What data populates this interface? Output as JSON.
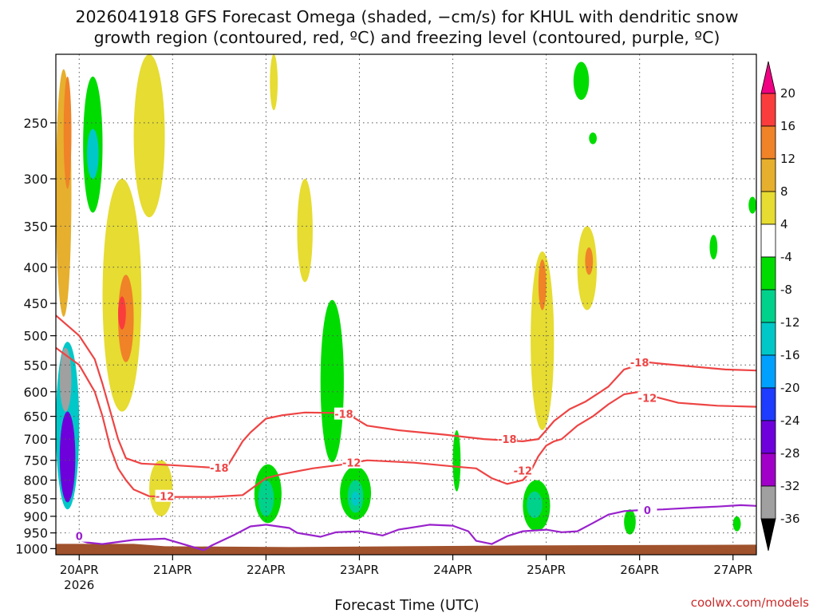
{
  "title": {
    "line1": "2026041918 GFS Forecast Omega (shaded, −cm/s) for KHUL with dendritic snow",
    "line2": "growth region (contoured, red, ºC) and freezing level (contoured, purple, ºC)"
  },
  "credit": "coolwx.com/models",
  "colors": {
    "dgz": "#ee4444",
    "freezing": "#9922cc",
    "ground": "#a0522d",
    "grid": "#555555"
  },
  "chart_data": {
    "type": "heatmap",
    "xlabel": "Forecast Time (UTC)",
    "x_ticks": [
      {
        "hour": 6,
        "label": "20APR",
        "sub": "2026"
      },
      {
        "hour": 30,
        "label": "21APR"
      },
      {
        "hour": 54,
        "label": "22APR"
      },
      {
        "hour": 78,
        "label": "23APR"
      },
      {
        "hour": 102,
        "label": "24APR"
      },
      {
        "hour": 126,
        "label": "25APR"
      },
      {
        "hour": 150,
        "label": "26APR"
      },
      {
        "hour": 174,
        "label": "27APR"
      }
    ],
    "xlim": [
      0,
      180
    ],
    "y_ticks": [
      250,
      300,
      350,
      400,
      450,
      500,
      550,
      600,
      650,
      700,
      750,
      800,
      850,
      900,
      950,
      1000
    ],
    "ylim": [
      1020,
      200
    ],
    "y_scale": "log-pressure",
    "grid": true,
    "colorbar": {
      "levels": [
        -36,
        -32,
        -28,
        -24,
        -20,
        -16,
        -12,
        -8,
        -4,
        4,
        8,
        12,
        16,
        20
      ],
      "colors": [
        "#000000",
        "#a0a0a0",
        "#a000c8",
        "#6e00dc",
        "#1e3cff",
        "#00a0ff",
        "#00c8c8",
        "#00d28c",
        "#00dc00",
        "#ffffff",
        "#e6dc32",
        "#e6af2d",
        "#f08228",
        "#fa3c3c",
        "#f00082"
      ]
    },
    "omega_regions": [
      {
        "h": [
          0,
          6
        ],
        "p": [
          510,
          880
        ],
        "v": -16
      },
      {
        "h": [
          1,
          4
        ],
        "p": [
          520,
          640
        ],
        "v": -36
      },
      {
        "h": [
          1,
          5
        ],
        "p": [
          640,
          860
        ],
        "v": -28
      },
      {
        "h": [
          7,
          12
        ],
        "p": [
          215,
          335
        ],
        "v": -8
      },
      {
        "h": [
          8,
          11
        ],
        "p": [
          255,
          300
        ],
        "v": -16
      },
      {
        "h": [
          0,
          4
        ],
        "p": [
          210,
          470
        ],
        "v": 8
      },
      {
        "h": [
          2,
          4
        ],
        "p": [
          215,
          310
        ],
        "v": 12
      },
      {
        "h": [
          12,
          22
        ],
        "p": [
          300,
          640
        ],
        "v": 4
      },
      {
        "h": [
          16,
          20
        ],
        "p": [
          410,
          545
        ],
        "v": 12
      },
      {
        "h": [
          16,
          18
        ],
        "p": [
          440,
          490
        ],
        "v": 16
      },
      {
        "h": [
          20,
          28
        ],
        "p": [
          200,
          340
        ],
        "v": 4
      },
      {
        "h": [
          24,
          30
        ],
        "p": [
          750,
          900
        ],
        "v": 4
      },
      {
        "h": [
          55,
          57
        ],
        "p": [
          200,
          240
        ],
        "v": 4
      },
      {
        "h": [
          62,
          66
        ],
        "p": [
          300,
          420
        ],
        "v": 4
      },
      {
        "h": [
          51,
          58
        ],
        "p": [
          760,
          920
        ],
        "v": -8
      },
      {
        "h": [
          52,
          56
        ],
        "p": [
          800,
          900
        ],
        "v": -12
      },
      {
        "h": [
          68,
          74
        ],
        "p": [
          445,
          755
        ],
        "v": -8
      },
      {
        "h": [
          73,
          81
        ],
        "p": [
          765,
          910
        ],
        "v": -8
      },
      {
        "h": [
          75,
          79
        ],
        "p": [
          800,
          890
        ],
        "v": -12
      },
      {
        "h": [
          76,
          78
        ],
        "p": [
          830,
          870
        ],
        "v": -16
      },
      {
        "h": [
          102,
          104
        ],
        "p": [
          680,
          830
        ],
        "v": -8
      },
      {
        "h": [
          122,
          128
        ],
        "p": [
          380,
          680
        ],
        "v": 4
      },
      {
        "h": [
          124,
          126
        ],
        "p": [
          390,
          460
        ],
        "v": 12
      },
      {
        "h": [
          120,
          127
        ],
        "p": [
          800,
          945
        ],
        "v": -8
      },
      {
        "h": [
          121,
          125
        ],
        "p": [
          830,
          905
        ],
        "v": -12
      },
      {
        "h": [
          134,
          139
        ],
        "p": [
          350,
          460
        ],
        "v": 4
      },
      {
        "h": [
          136,
          138
        ],
        "p": [
          375,
          410
        ],
        "v": 12
      },
      {
        "h": [
          133,
          137
        ],
        "p": [
          205,
          232
        ],
        "v": -8
      },
      {
        "h": [
          137,
          139
        ],
        "p": [
          258,
          268
        ],
        "v": -8
      },
      {
        "h": [
          146,
          149
        ],
        "p": [
          880,
          955
        ],
        "v": -8
      },
      {
        "h": [
          168,
          170
        ],
        "p": [
          360,
          390
        ],
        "v": -8
      },
      {
        "h": [
          174,
          176
        ],
        "p": [
          900,
          945
        ],
        "v": -8
      },
      {
        "h": [
          178,
          180
        ],
        "p": [
          318,
          336
        ],
        "v": -8
      }
    ],
    "dgz_contours": [
      {
        "label": "-18",
        "label_at": [
          [
            42,
            768
          ],
          [
            74,
            645
          ],
          [
            116,
            700
          ],
          [
            150,
            545
          ]
        ],
        "points": [
          [
            0,
            468
          ],
          [
            6,
            500
          ],
          [
            10,
            540
          ],
          [
            12,
            585
          ],
          [
            14,
            640
          ],
          [
            16,
            700
          ],
          [
            18,
            745
          ],
          [
            22,
            758
          ],
          [
            30,
            762
          ],
          [
            40,
            768
          ],
          [
            44,
            766
          ],
          [
            46,
            735
          ],
          [
            48,
            705
          ],
          [
            50,
            685
          ],
          [
            54,
            655
          ],
          [
            58,
            648
          ],
          [
            64,
            642
          ],
          [
            72,
            643
          ],
          [
            76,
            650
          ],
          [
            80,
            670
          ],
          [
            88,
            680
          ],
          [
            100,
            690
          ],
          [
            110,
            700
          ],
          [
            120,
            705
          ],
          [
            124,
            700
          ],
          [
            126,
            680
          ],
          [
            128,
            660
          ],
          [
            132,
            635
          ],
          [
            136,
            620
          ],
          [
            140,
            600
          ],
          [
            142,
            590
          ],
          [
            146,
            558
          ],
          [
            152,
            545
          ],
          [
            156,
            548
          ],
          [
            164,
            553
          ],
          [
            172,
            558
          ],
          [
            180,
            560
          ]
        ]
      },
      {
        "label": "-12",
        "label_at": [
          [
            28,
            843
          ],
          [
            76,
            756
          ],
          [
            120,
            775
          ],
          [
            152,
            612
          ]
        ],
        "points": [
          [
            0,
            520
          ],
          [
            6,
            550
          ],
          [
            10,
            600
          ],
          [
            12,
            650
          ],
          [
            14,
            720
          ],
          [
            16,
            770
          ],
          [
            18,
            800
          ],
          [
            20,
            825
          ],
          [
            24,
            843
          ],
          [
            30,
            845
          ],
          [
            40,
            845
          ],
          [
            48,
            840
          ],
          [
            54,
            795
          ],
          [
            58,
            785
          ],
          [
            66,
            770
          ],
          [
            74,
            760
          ],
          [
            80,
            750
          ],
          [
            84,
            752
          ],
          [
            92,
            756
          ],
          [
            102,
            765
          ],
          [
            108,
            770
          ],
          [
            112,
            795
          ],
          [
            116,
            810
          ],
          [
            120,
            800
          ],
          [
            122,
            778
          ],
          [
            124,
            740
          ],
          [
            126,
            715
          ],
          [
            128,
            705
          ],
          [
            130,
            700
          ],
          [
            134,
            670
          ],
          [
            138,
            650
          ],
          [
            142,
            625
          ],
          [
            146,
            605
          ],
          [
            150,
            600
          ],
          [
            154,
            610
          ],
          [
            160,
            622
          ],
          [
            170,
            628
          ],
          [
            180,
            630
          ]
        ]
      }
    ],
    "freezing_contours": [
      {
        "label": "0",
        "label_at": [
          [
            6,
            960
          ],
          [
            152,
            882
          ]
        ],
        "points": [
          [
            4,
            965
          ],
          [
            8,
            980
          ],
          [
            12,
            985
          ],
          [
            20,
            972
          ],
          [
            28,
            968
          ],
          [
            38,
            1005
          ],
          [
            40,
            990
          ],
          [
            46,
            955
          ],
          [
            50,
            930
          ],
          [
            54,
            925
          ],
          [
            60,
            935
          ],
          [
            62,
            950
          ],
          [
            68,
            962
          ],
          [
            72,
            948
          ],
          [
            78,
            945
          ],
          [
            84,
            958
          ],
          [
            88,
            940
          ],
          [
            96,
            925
          ],
          [
            102,
            928
          ],
          [
            106,
            945
          ],
          [
            108,
            975
          ],
          [
            112,
            985
          ],
          [
            116,
            960
          ],
          [
            120,
            945
          ],
          [
            126,
            940
          ],
          [
            130,
            948
          ],
          [
            134,
            945
          ],
          [
            138,
            920
          ],
          [
            142,
            895
          ],
          [
            146,
            885
          ],
          [
            150,
            882
          ],
          [
            156,
            880
          ],
          [
            164,
            875
          ],
          [
            170,
            872
          ],
          [
            176,
            868
          ],
          [
            180,
            870
          ]
        ]
      }
    ]
  }
}
